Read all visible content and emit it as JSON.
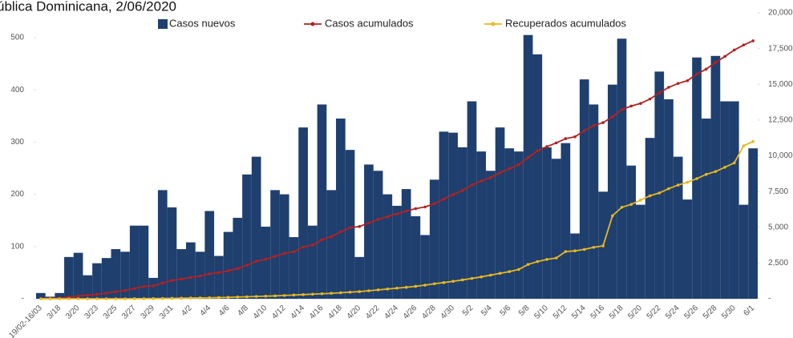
{
  "chart_data": {
    "type": "bar-line",
    "title": "ública Dominicana, 2/06/2020",
    "categories": [
      "19/02-16/03",
      null,
      "3/18",
      null,
      "3/20",
      null,
      "3/23",
      null,
      "3/25",
      null,
      "3/27",
      null,
      "3/29",
      null,
      "3/31",
      null,
      "4/2",
      null,
      "4/4",
      null,
      "4/6",
      null,
      "4/8",
      null,
      "4/10",
      null,
      "4/12",
      null,
      "4/14",
      null,
      "4/16",
      null,
      "4/18",
      null,
      "4/20",
      null,
      "4/22",
      null,
      "4/24",
      null,
      "4/26",
      null,
      "4/28",
      null,
      "4/30",
      null,
      "5/2",
      null,
      "5/4",
      null,
      "5/6",
      null,
      "5/8",
      null,
      "5/10",
      null,
      "5/12",
      null,
      "5/14",
      null,
      "5/16",
      null,
      "5/18",
      null,
      "5/20",
      null,
      "5/22",
      null,
      "5/24",
      null,
      "5/26",
      null,
      "5/28",
      null,
      "5/30",
      null,
      "6/1"
    ],
    "series": [
      {
        "name": "Casos nuevos",
        "type": "bar",
        "color": "#1f3f6e",
        "values": [
          11,
          4,
          11,
          80,
          88,
          45,
          68,
          78,
          95,
          90,
          140,
          140,
          40,
          208,
          175,
          95,
          108,
          90,
          168,
          82,
          128,
          155,
          238,
          272,
          138,
          208,
          200,
          118,
          328,
          140,
          372,
          208,
          345,
          285,
          80,
          257,
          245,
          200,
          178,
          210,
          158,
          122,
          228,
          320,
          318,
          290,
          378,
          282,
          245,
          328,
          288,
          282,
          505,
          468,
          290,
          268,
          298,
          125,
          420,
          372,
          205,
          410,
          498,
          255,
          180,
          308,
          435,
          382,
          272,
          190,
          462,
          345,
          465,
          378,
          378,
          180,
          288
        ]
      },
      {
        "name": "Casos acumulados",
        "type": "line",
        "axis": "y2",
        "color": "#b22222",
        "values": [
          20,
          30,
          40,
          110,
          200,
          250,
          310,
          390,
          490,
          580,
          720,
          860,
          900,
          1100,
          1280,
          1380,
          1490,
          1580,
          1750,
          1830,
          1960,
          2110,
          2350,
          2620,
          2760,
          2970,
          3170,
          3290,
          3620,
          3760,
          4130,
          4340,
          4680,
          4970,
          5050,
          5300,
          5550,
          5750,
          5930,
          6140,
          6300,
          6420,
          6650,
          6970,
          7290,
          7580,
          7950,
          8240,
          8480,
          8810,
          9100,
          9380,
          9880,
          10350,
          10640,
          10900,
          11200,
          11330,
          11750,
          12120,
          12320,
          12730,
          13230,
          13480,
          13660,
          13970,
          14400,
          14790,
          15060,
          15250,
          15720,
          16060,
          16530,
          16950,
          17400,
          17750,
          18040
        ]
      },
      {
        "name": "Recuperados acumulados",
        "type": "line",
        "axis": "y2",
        "color": "#e6b820",
        "values": [
          0,
          0,
          0,
          0,
          0,
          0,
          0,
          0,
          0,
          0,
          5,
          5,
          10,
          20,
          30,
          40,
          50,
          60,
          70,
          80,
          100,
          120,
          140,
          160,
          180,
          200,
          230,
          260,
          290,
          320,
          350,
          380,
          420,
          460,
          500,
          560,
          620,
          680,
          740,
          800,
          870,
          950,
          1050,
          1130,
          1220,
          1320,
          1420,
          1530,
          1650,
          1780,
          1900,
          2050,
          2400,
          2600,
          2750,
          2850,
          3300,
          3350,
          3450,
          3600,
          3700,
          5800,
          6400,
          6600,
          6900,
          7200,
          7400,
          7700,
          7950,
          8150,
          8400,
          8700,
          8900,
          9200,
          9500,
          10700,
          11000
        ]
      }
    ],
    "ylim": [
      0,
      547.5
    ],
    "yticks": [
      {
        "value": 0,
        "label": "-"
      },
      100,
      200,
      300,
      400,
      500
    ],
    "y2lim": [
      0,
      20000
    ],
    "y2ticks": [
      {
        "value": 0,
        "label": "-"
      },
      {
        "value": 2500,
        "label": "2,500"
      },
      {
        "value": 5000,
        "label": "5,000"
      },
      {
        "value": 7500,
        "label": "7,500"
      },
      {
        "value": 10000,
        "label": "10,000"
      },
      {
        "value": 12500,
        "label": "12,500"
      },
      {
        "value": 15000,
        "label": "15,000"
      },
      {
        "value": 17500,
        "label": "17,500"
      },
      {
        "value": 20000,
        "label": "20,000"
      }
    ],
    "grid": false
  }
}
